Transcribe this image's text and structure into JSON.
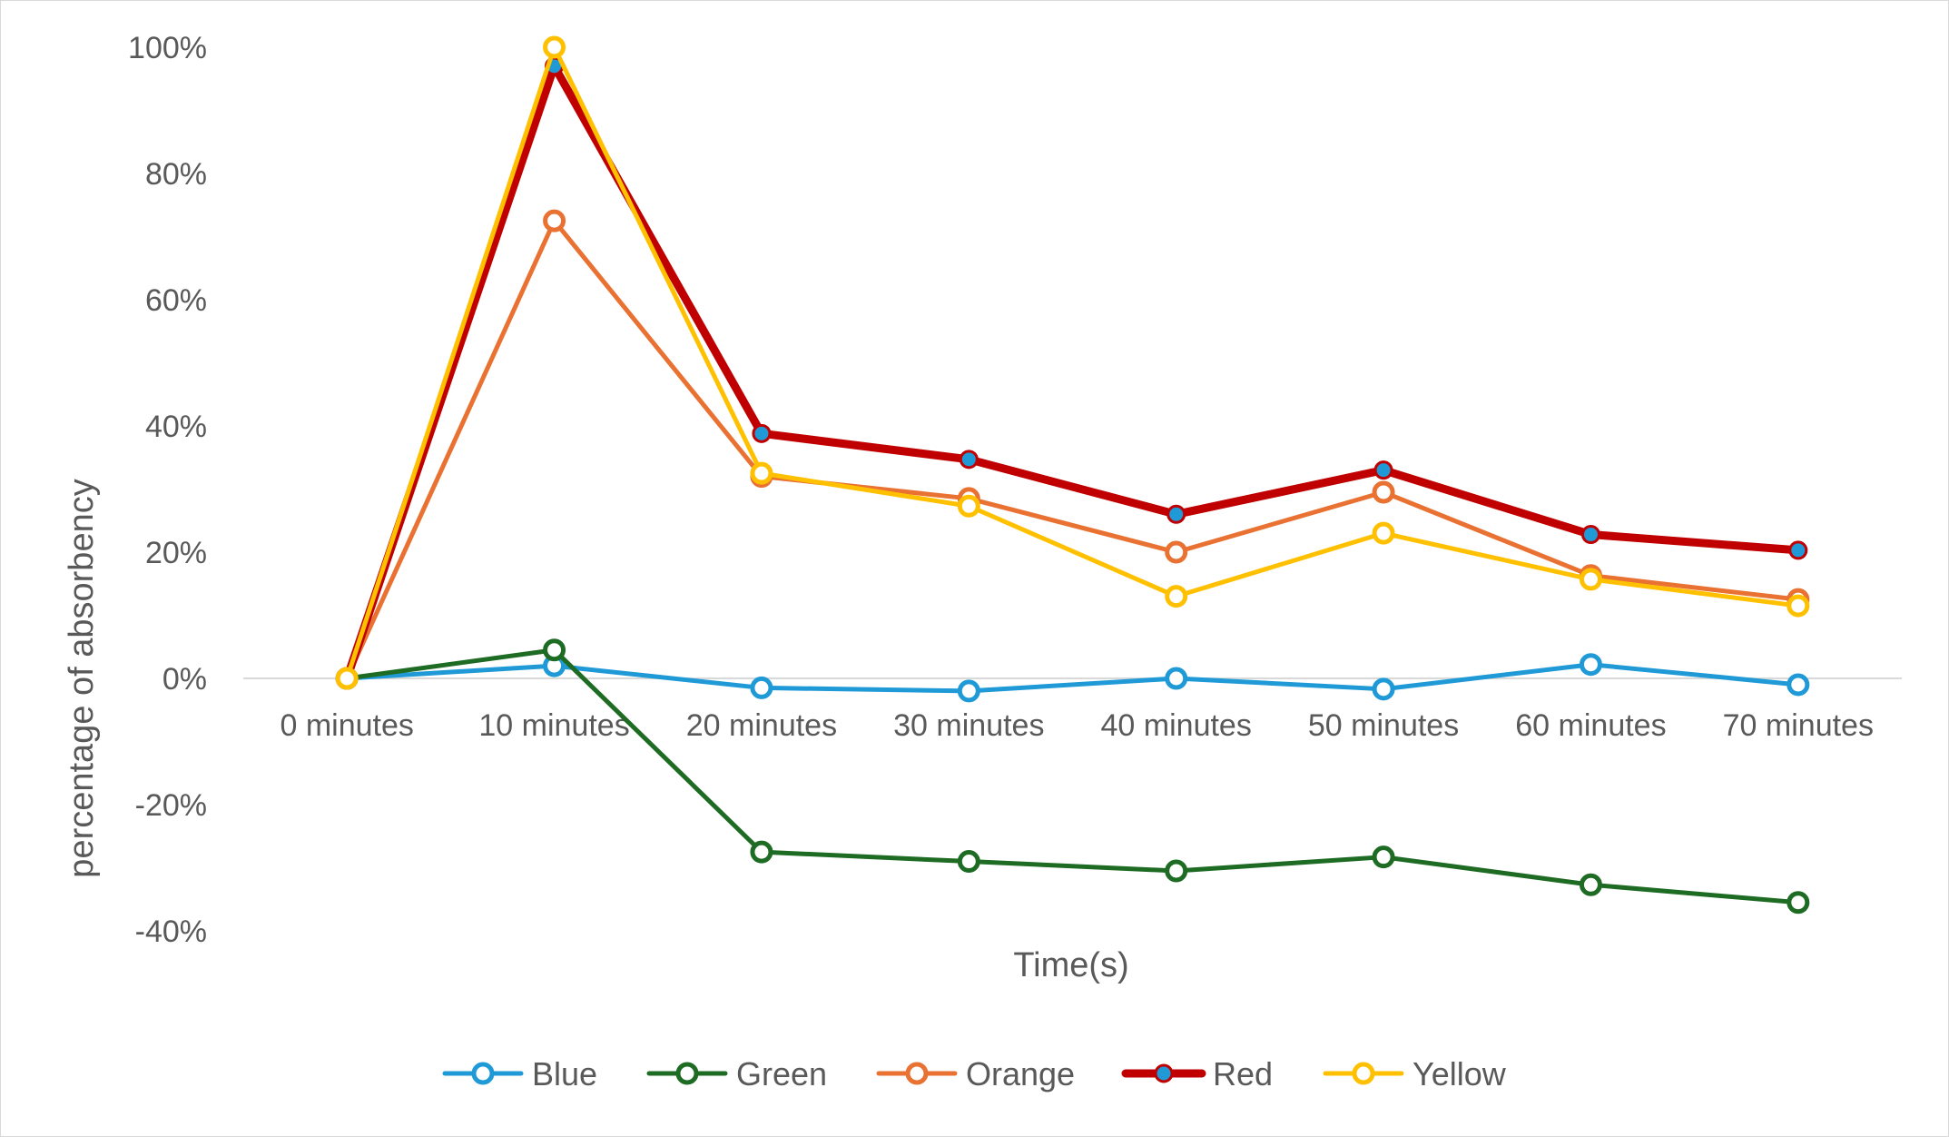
{
  "chart_data": {
    "type": "line",
    "title": "",
    "xlabel": "Time(s)",
    "ylabel": "percentage of absorbency",
    "categories": [
      "0 minutes",
      "10 minutes",
      "20 minutes",
      "30 minutes",
      "40 minutes",
      "50 minutes",
      "60 minutes",
      "70 minutes"
    ],
    "ylim": [
      -0.4,
      1.0
    ],
    "y_ticks": [
      1.0,
      0.8,
      0.6,
      0.4,
      0.2,
      0.0,
      -0.2,
      -0.4
    ],
    "y_tick_labels": [
      "100%",
      "80%",
      "60%",
      "40%",
      "20%",
      "0%",
      "-20%",
      "-40%"
    ],
    "grid": false,
    "legend_position": "bottom",
    "series": [
      {
        "name": "Blue",
        "color": "#1f9ad6",
        "marker": "hollow-circle",
        "values": [
          0.0,
          0.02,
          -0.015,
          -0.02,
          0.0,
          -0.017,
          0.022,
          -0.01
        ]
      },
      {
        "name": "Green",
        "color": "#1e6b24",
        "marker": "hollow-circle",
        "values": [
          0.0,
          0.045,
          -0.275,
          -0.29,
          -0.305,
          -0.283,
          -0.327,
          -0.355
        ]
      },
      {
        "name": "Orange",
        "color": "#e97132",
        "marker": "hollow-circle",
        "values": [
          0.0,
          0.725,
          0.32,
          0.285,
          0.2,
          0.295,
          0.163,
          0.125
        ]
      },
      {
        "name": "Red",
        "color": "#c00000",
        "marker": "filled-circle",
        "marker_fill": "#1f9ad6",
        "values": [
          0.0,
          0.97,
          0.388,
          0.347,
          0.26,
          0.33,
          0.228,
          0.203
        ]
      },
      {
        "name": "Yellow",
        "color": "#ffc000",
        "marker": "hollow-circle",
        "values": [
          0.0,
          1.0,
          0.325,
          0.273,
          0.13,
          0.23,
          0.157,
          0.115
        ]
      }
    ]
  }
}
